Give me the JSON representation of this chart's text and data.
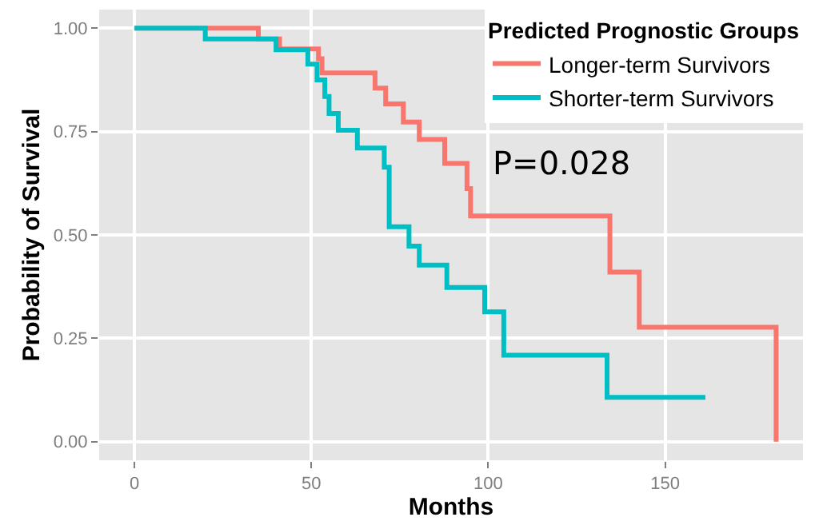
{
  "chart_data": {
    "type": "step",
    "xlabel": "Months",
    "ylabel": "Probability of Survival",
    "legend_title": "Predicted Prognostic Groups",
    "annotations": [
      "P=0.028"
    ],
    "xlim": [
      -10,
      189
    ],
    "xticks": [
      0,
      50,
      100,
      150
    ],
    "ylim": [
      -0.045,
      1.045
    ],
    "yticks": [
      {
        "value": 0,
        "label": "0.00"
      },
      {
        "value": 0.25,
        "label": "0.25"
      },
      {
        "value": 0.5,
        "label": "0.50"
      },
      {
        "value": 0.75,
        "label": "0.75"
      },
      {
        "value": 1,
        "label": "1.00"
      }
    ],
    "grid": true,
    "legend": "top right",
    "line_style": "solid",
    "marker": "none",
    "series": [
      {
        "name": "Longer-term Survivors",
        "color": "#f8766d",
        "x": [
          0,
          35,
          41,
          52,
          53,
          68,
          71,
          76,
          80.5,
          87.7,
          94,
          95,
          134.4,
          142.7,
          181.4
        ],
        "values": [
          1,
          0.974,
          0.95,
          0.926,
          0.892,
          0.855,
          0.817,
          0.773,
          0.731,
          0.673,
          0.612,
          0.546,
          0.41,
          0.277,
          0
        ]
      },
      {
        "name": "Shorter-term Survivors",
        "color": "#00bfc4",
        "x": [
          0,
          20,
          40,
          49,
          51.6,
          53.8,
          55,
          57.6,
          63,
          70.6,
          72,
          77.6,
          80.5,
          88.3,
          99,
          104.4,
          133.6,
          161.4
        ],
        "values": [
          1,
          0.974,
          0.948,
          0.913,
          0.875,
          0.835,
          0.794,
          0.753,
          0.71,
          0.664,
          0.52,
          0.473,
          0.427,
          0.373,
          0.314,
          0.209,
          0.107,
          0.107
        ]
      }
    ]
  }
}
